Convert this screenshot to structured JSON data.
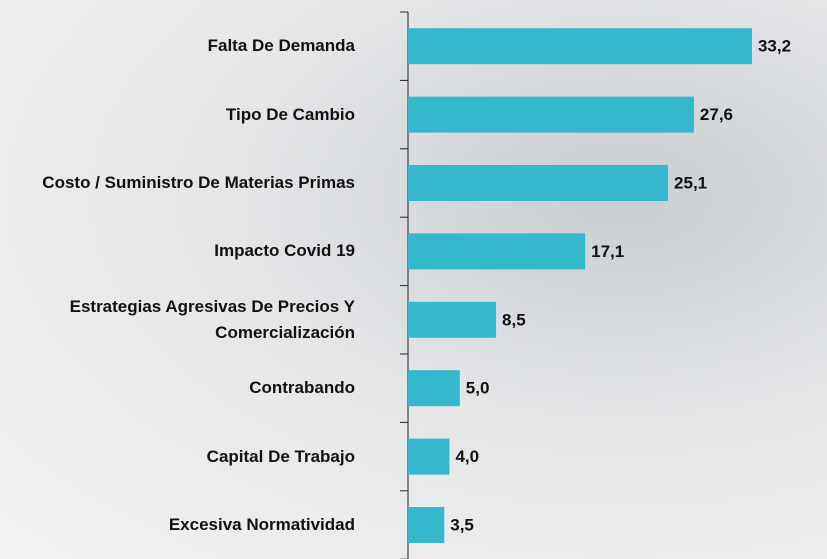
{
  "chart_data": {
    "type": "bar",
    "orientation": "horizontal",
    "categories": [
      "Falta De Demanda",
      "Tipo De Cambio",
      "Costo / Suministro De Materias Primas",
      "Impacto Covid 19",
      "Estrategias Agresivas De Precios Y Comercialización",
      "Contrabando",
      "Capital De Trabajo",
      "Excesiva Normatividad"
    ],
    "values": [
      33.2,
      27.6,
      25.1,
      17.1,
      8.5,
      5.0,
      4.0,
      3.5
    ],
    "value_labels": [
      "33,2",
      "27,6",
      "25,1",
      "17,1",
      "8,5",
      "5,0",
      "4,0",
      "3,5"
    ],
    "color": "#35b8cb"
  }
}
